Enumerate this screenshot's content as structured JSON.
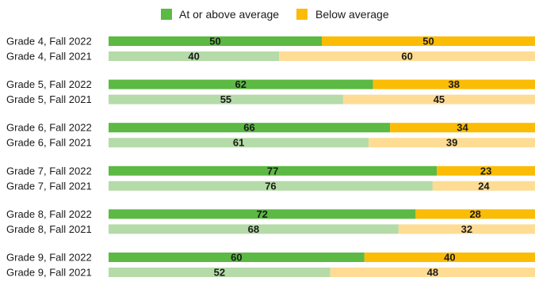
{
  "chart_data": {
    "type": "bar",
    "orientation": "horizontal",
    "stacked": "percent",
    "legend": {
      "position": "top-center",
      "items": [
        {
          "label": "At or above average",
          "color": "#5cb944"
        },
        {
          "label": "Below average",
          "color": "#fbbc05"
        }
      ]
    },
    "groups": [
      {
        "rows": [
          {
            "label": "Grade 4, Fall 2022",
            "values": [
              50,
              50
            ],
            "shade": "dark"
          },
          {
            "label": "Grade 4, Fall 2021",
            "values": [
              40,
              60
            ],
            "shade": "light"
          }
        ]
      },
      {
        "rows": [
          {
            "label": "Grade 5, Fall 2022",
            "values": [
              62,
              38
            ],
            "shade": "dark"
          },
          {
            "label": "Grade 5, Fall 2021",
            "values": [
              55,
              45
            ],
            "shade": "light"
          }
        ]
      },
      {
        "rows": [
          {
            "label": "Grade 6, Fall 2022",
            "values": [
              66,
              34
            ],
            "shade": "dark"
          },
          {
            "label": "Grade 6, Fall 2021",
            "values": [
              61,
              39
            ],
            "shade": "light"
          }
        ]
      },
      {
        "rows": [
          {
            "label": "Grade 7, Fall 2022",
            "values": [
              77,
              23
            ],
            "shade": "dark"
          },
          {
            "label": "Grade 7, Fall 2021",
            "values": [
              76,
              24
            ],
            "shade": "light"
          }
        ]
      },
      {
        "rows": [
          {
            "label": "Grade 8, Fall 2022",
            "values": [
              72,
              28
            ],
            "shade": "dark"
          },
          {
            "label": "Grade 8, Fall 2021",
            "values": [
              68,
              32
            ],
            "shade": "light"
          }
        ]
      },
      {
        "rows": [
          {
            "label": "Grade 9, Fall 2022",
            "values": [
              60,
              40
            ],
            "shade": "dark"
          },
          {
            "label": "Grade 9, Fall 2021",
            "values": [
              52,
              48
            ],
            "shade": "light"
          }
        ]
      }
    ],
    "colors": {
      "dark": [
        "#5cb944",
        "#fbbc05"
      ],
      "light": [
        "#b5dba8",
        "#fedc94"
      ]
    },
    "xlim": [
      0,
      100
    ],
    "grid": false
  }
}
